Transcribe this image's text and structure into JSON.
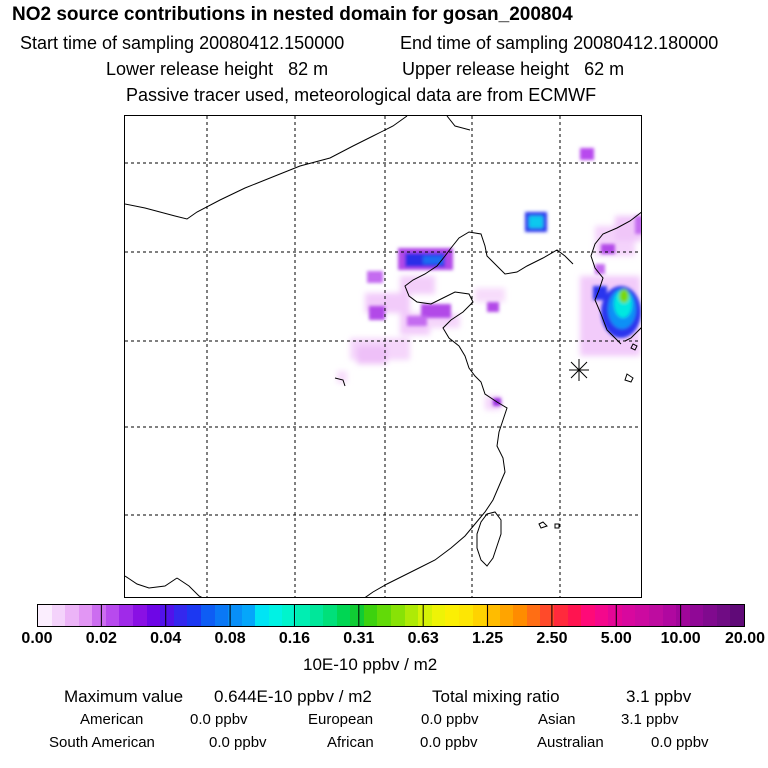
{
  "header": {
    "title": "NO2 source contributions in nested domain for gosan_200804",
    "start_label": "Start time of sampling 20080412.150000",
    "end_label": "End time of sampling 20080412.180000",
    "lower_label": "Lower release height   82 m",
    "upper_label": "Upper release height   62 m",
    "tracer_note": "Passive tracer used, meteorological data are from ECMWF"
  },
  "legend": {
    "ticks": [
      "0.00",
      "0.02",
      "0.04",
      "0.08",
      "0.16",
      "0.31",
      "0.63",
      "1.25",
      "2.50",
      "5.00",
      "10.00",
      "20.00"
    ],
    "unit": "10E-10 ppbv / m2",
    "colors": [
      "#fbeefe",
      "#f4d3fb",
      "#ecb4f7",
      "#e296f4",
      "#cc6df0",
      "#b84aee",
      "#a02ae9",
      "#8a10e4",
      "#6e06e6",
      "#5212ea",
      "#3428ee",
      "#1c38f2",
      "#0e5df4",
      "#0a78f6",
      "#088ff8",
      "#05a6fa",
      "#00e4f4",
      "#00f2e4",
      "#00f4cc",
      "#00eeb2",
      "#00e79a",
      "#00e07a",
      "#00d653",
      "#10cc34",
      "#3dd20e",
      "#62da08",
      "#88e206",
      "#aeea06",
      "#d5f206",
      "#eef306",
      "#fbef04",
      "#fde604",
      "#ffd300",
      "#ffbc00",
      "#ffa400",
      "#ff8c00",
      "#ff6e14",
      "#ff4a2a",
      "#ff2a3c",
      "#ff1450",
      "#ff0a78",
      "#f4088c",
      "#e40696",
      "#d8089e",
      "#cc0aa0",
      "#be0ca0",
      "#b008a0",
      "#a0069a",
      "#900896",
      "#800a8e",
      "#700c84",
      "#600a78"
    ]
  },
  "summary": {
    "max_label": "Maximum value",
    "max_value": "0.644E-10 ppbv / m2",
    "total_label": "Total mixing ratio",
    "total_value": "3.1 ppbv"
  },
  "regions": [
    {
      "name": "American",
      "value": "0.0 ppbv"
    },
    {
      "name": "European",
      "value": "0.0 ppbv"
    },
    {
      "name": "Asian",
      "value": "3.1 ppbv"
    },
    {
      "name": "South American",
      "value": "0.0 ppbv"
    },
    {
      "name": "African",
      "value": "0.0 ppbv"
    },
    {
      "name": "Australian",
      "value": "0.0 ppbv"
    }
  ]
}
